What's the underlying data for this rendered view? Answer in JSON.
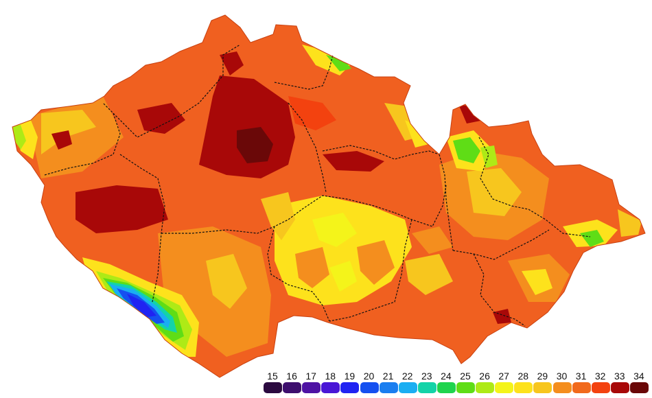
{
  "map": {
    "regions": [
      {
        "name": "region-karlovarsky",
        "level": 31
      },
      {
        "name": "region-ustecky",
        "level": 31
      },
      {
        "name": "region-liberecky",
        "level": 30
      },
      {
        "name": "region-plzensky",
        "level": 31
      },
      {
        "name": "region-stredocesky",
        "level": 33
      },
      {
        "name": "region-praha",
        "level": 33
      },
      {
        "name": "region-kralovehradecky",
        "level": 31
      },
      {
        "name": "region-pardubicky",
        "level": 29
      },
      {
        "name": "region-jihocesky",
        "level": 30
      },
      {
        "name": "region-vysocina",
        "level": 28
      },
      {
        "name": "region-jihomoravsky",
        "level": 31
      },
      {
        "name": "region-olomoucky",
        "level": 29
      },
      {
        "name": "region-zlinsky",
        "level": 30
      },
      {
        "name": "region-moravskoslezsky",
        "level": 31
      }
    ]
  },
  "legend": {
    "items": [
      {
        "label": "15",
        "color": "#2b0a40"
      },
      {
        "label": "16",
        "color": "#3d0f6e"
      },
      {
        "label": "17",
        "color": "#4e13a4"
      },
      {
        "label": "18",
        "color": "#4916d6"
      },
      {
        "label": "19",
        "color": "#2023f2"
      },
      {
        "label": "20",
        "color": "#1550f0"
      },
      {
        "label": "21",
        "color": "#1a7ef0"
      },
      {
        "label": "22",
        "color": "#1aaef2"
      },
      {
        "label": "23",
        "color": "#13d3a8"
      },
      {
        "label": "24",
        "color": "#1fd44e"
      },
      {
        "label": "25",
        "color": "#5fdd16"
      },
      {
        "label": "26",
        "color": "#aeea16"
      },
      {
        "label": "27",
        "color": "#f4f41a"
      },
      {
        "label": "28",
        "color": "#fde21c"
      },
      {
        "label": "29",
        "color": "#f7c61e"
      },
      {
        "label": "30",
        "color": "#f48e1e"
      },
      {
        "label": "31",
        "color": "#f16a1c"
      },
      {
        "label": "32",
        "color": "#f3420f"
      },
      {
        "label": "33",
        "color": "#a80808"
      },
      {
        "label": "34",
        "color": "#6a0808"
      }
    ]
  }
}
